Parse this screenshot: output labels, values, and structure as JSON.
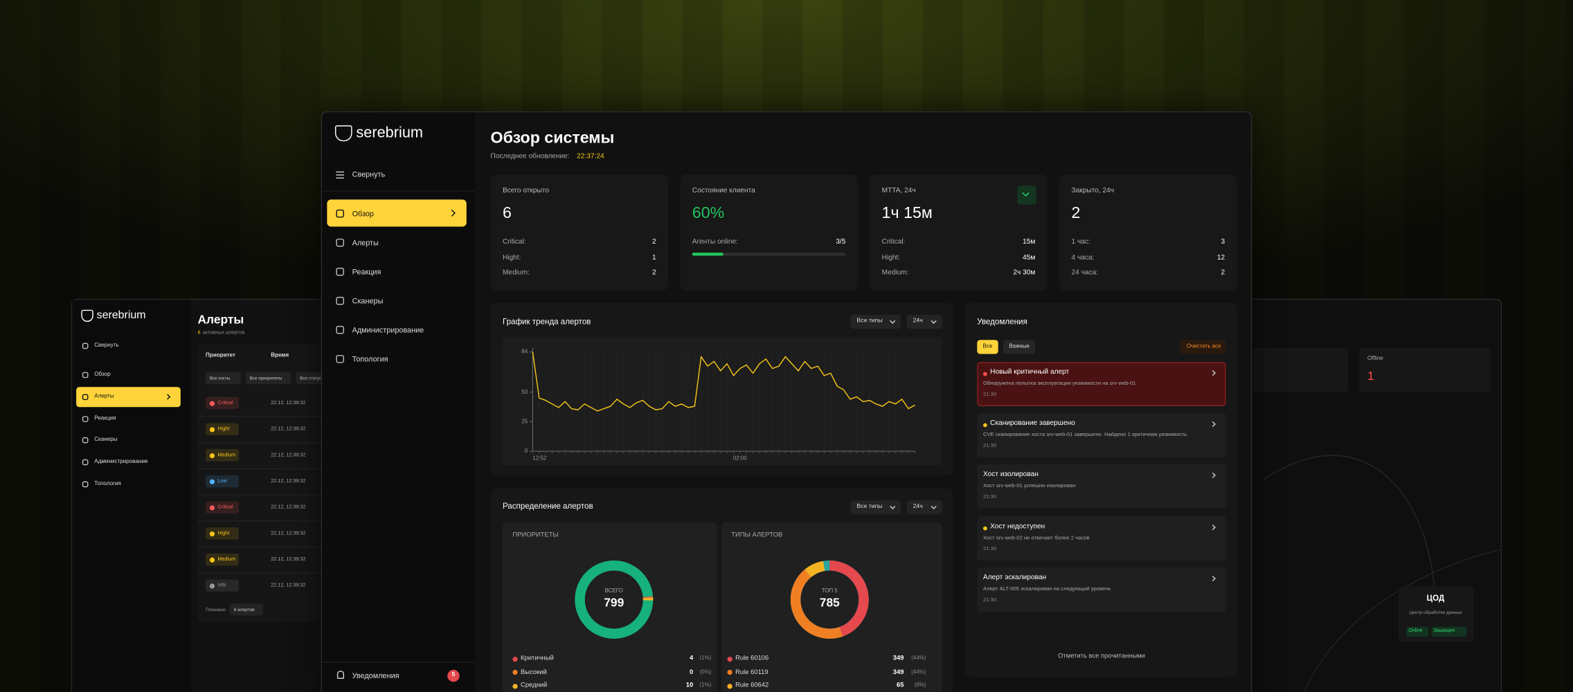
{
  "alerts_window": {
    "logo": "serebrium",
    "menu": [
      "Свернуть",
      "Обзор",
      "Алерты",
      "Реакция",
      "Сканеры",
      "Администрирование",
      "Топология"
    ],
    "title": "Алерты",
    "active_count": 6,
    "active_label": "активных алертов",
    "columns": [
      "Приоритет",
      "Время"
    ],
    "filters": [
      "Все хосты",
      "Все приоритеты",
      "Все статусы"
    ],
    "rows": [
      {
        "priority": "Critical",
        "time": "22.12, 12:39:32",
        "color": "#ff5a5a"
      },
      {
        "priority": "Hight",
        "time": "22.12, 12:39:32",
        "color": "#f5c518"
      },
      {
        "priority": "Medium",
        "time": "22.12, 12:39:32",
        "color": "#f5c518"
      },
      {
        "priority": "Low",
        "time": "22.12, 12:39:32",
        "color": "#4fb3ff"
      },
      {
        "priority": "Critical",
        "time": "22.12, 12:39:32",
        "color": "#ff5a5a"
      },
      {
        "priority": "Hight",
        "time": "22.12, 12:39:32",
        "color": "#f5c518"
      },
      {
        "priority": "Medium",
        "time": "22.12, 12:39:32",
        "color": "#f5c518"
      },
      {
        "priority": "Info",
        "time": "22.12, 12:39:32",
        "color": "#9a9a9a"
      }
    ],
    "shown_label": "Показано",
    "shown_value": "8 алертов"
  },
  "main_window": {
    "logo": "serebrium",
    "collapse": "Свернуть",
    "menu": [
      "Обзор",
      "Алерты",
      "Реакция",
      "Сканеры",
      "Администрирование",
      "Топология"
    ],
    "notifications_label": "Уведомления",
    "notifications_badge": 5,
    "title": "Обзор системы",
    "updated_label": "Последнее обновление:",
    "updated_time": "22:37:24",
    "cards": [
      {
        "title": "Всего открыто",
        "value": 6,
        "rows": [
          [
            "Critical:",
            2
          ],
          [
            "Hight:",
            1
          ],
          [
            "Medium:",
            2
          ]
        ]
      },
      {
        "title": "Состояние клиента",
        "value": "60%",
        "value_color": "#22c55e",
        "rows": [
          [
            "Агенты online:",
            "3/5"
          ]
        ]
      },
      {
        "title": "MTTA, 24ч",
        "value": "1ч 15м",
        "rows": [
          [
            "Critical:",
            "15м"
          ],
          [
            "Hight:",
            "45м"
          ],
          [
            "Medium:",
            "2ч 30м"
          ]
        ]
      },
      {
        "title": "Закрыто, 24ч",
        "value": 2,
        "rows": [
          [
            "1 час:",
            3
          ],
          [
            "4 часа:",
            12
          ],
          [
            "24 часа:",
            2
          ]
        ]
      }
    ],
    "trend": {
      "title": "График тренда алертов",
      "filters": [
        "Все типы",
        "24ч"
      ],
      "chart_data": {
        "type": "line",
        "color": "#f5c518",
        "categories": [
          "12:52",
          null,
          null,
          null,
          null,
          null,
          null,
          null,
          null,
          null,
          null,
          null,
          null,
          null,
          null,
          null,
          null,
          null,
          null,
          null,
          null,
          null,
          null,
          null,
          null,
          null,
          null,
          null,
          null,
          null,
          null,
          null,
          "02:00",
          null,
          null,
          null,
          null,
          null,
          null,
          null,
          null,
          null,
          null,
          null,
          null,
          null,
          null,
          null,
          null,
          null,
          null,
          null,
          null,
          null,
          null,
          null,
          null,
          null,
          null,
          null
        ],
        "values": [
          84,
          45,
          43,
          40,
          37,
          42,
          36,
          35,
          40,
          37,
          34,
          36,
          38,
          44,
          40,
          37,
          41,
          43,
          38,
          35,
          36,
          42,
          38,
          40,
          37,
          38,
          80,
          72,
          76,
          68,
          74,
          64,
          70,
          73,
          66,
          74,
          78,
          70,
          72,
          80,
          74,
          68,
          76,
          70,
          72,
          64,
          66,
          55,
          52,
          44,
          46,
          42,
          43,
          40,
          38,
          42,
          40,
          44,
          36,
          39
        ],
        "ylim": [
          0,
          84
        ],
        "yticks": [
          0,
          25,
          50,
          84
        ]
      }
    },
    "distribution": {
      "title": "Распределение алертов",
      "filters": [
        "Все типы",
        "24ч"
      ],
      "priorities": {
        "title": "ПРИОРИТЕТЫ",
        "center_label": "ВСЕГО",
        "total": 799,
        "track_color": "#17b27c",
        "items": [
          {
            "name": "Критичный",
            "value": 4,
            "share": "(1%)",
            "color": "#e5484d"
          },
          {
            "name": "Высокий",
            "value": 0,
            "share": "(0%)",
            "color": "#f07f24"
          },
          {
            "name": "Средний",
            "value": 10,
            "share": "(1%)",
            "color": "#f5b324"
          }
        ]
      },
      "types": {
        "title": "ТИПЫ АЛЕРТОВ",
        "center_label": "ТОП 5",
        "total": 785,
        "track_color": "#2aa6a0",
        "items": [
          {
            "name": "Rule 60106",
            "value": 349,
            "share": "(44%)",
            "color": "#e5484d"
          },
          {
            "name": "Rule 60119",
            "value": 349,
            "share": "(44%)",
            "color": "#f07f24"
          },
          {
            "name": "Rule 60642",
            "value": 65,
            "share": "(8%)",
            "color": "#f5b324"
          }
        ]
      }
    },
    "notifications": {
      "title": "Уведомления",
      "tabs": [
        "Все",
        "Важные"
      ],
      "clear": "Очистить все",
      "items": [
        {
          "title": "Новый критичный алерт",
          "text": "Обнаружена попытка эксплуатации уязвимости на srv-web-01",
          "time": "21:30",
          "dot": "#ff4d4d"
        },
        {
          "title": "Сканирование завершено",
          "text": "CVE сканирование хоста srv-web-01 завершено. Найдено 1 критичная уязвимость",
          "time": "21:30",
          "dot": "#f5c518"
        },
        {
          "title": "Хост изолирован",
          "text": "Хост srv-web-01 успешно изолирован",
          "time": "21:30"
        },
        {
          "title": "Хост недоступен",
          "text": "Хост srv-web-02 не отвечает более 2 часов",
          "time": "21:30",
          "dot": "#f5c518"
        },
        {
          "title": "Алерт эскалирован",
          "text": "Алерт ALT-005 эскалирован на следующий уровень",
          "time": "21:30"
        }
      ],
      "mark_all": "Отметить все прочитанными"
    }
  },
  "topology_window": {
    "card_title": "Offline",
    "card_value": 1,
    "site": {
      "title": "ЦОД",
      "subtitle": "Центр обработки данных",
      "badges": [
        "Online",
        "Защищен"
      ]
    }
  }
}
